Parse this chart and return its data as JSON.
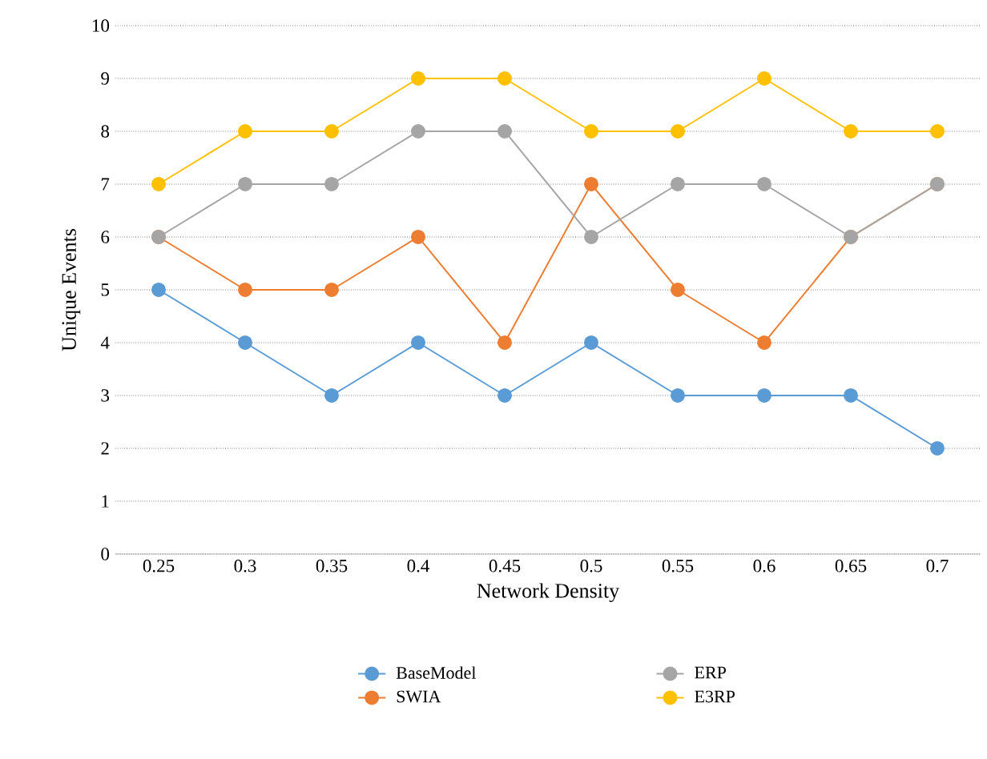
{
  "chart_data": {
    "type": "line",
    "xlabel": "Network Density",
    "ylabel": "Unique Events",
    "categories": [
      "0.25",
      "0.3",
      "0.35",
      "0.4",
      "0.45",
      "0.5",
      "0.55",
      "0.6",
      "0.65",
      "0.7"
    ],
    "series": [
      {
        "name": "BaseModel",
        "color": "#5b9bd5",
        "values": [
          5,
          4,
          3,
          4,
          3,
          4,
          3,
          3,
          3,
          2
        ]
      },
      {
        "name": "SWIA",
        "color": "#ed7d31",
        "values": [
          6,
          5,
          5,
          6,
          4,
          7,
          5,
          4,
          6,
          7
        ]
      },
      {
        "name": "ERP",
        "color": "#a5a5a5",
        "values": [
          6,
          7,
          7,
          8,
          8,
          6,
          7,
          7,
          6,
          7
        ]
      },
      {
        "name": "E3RP",
        "color": "#ffc000",
        "values": [
          7,
          8,
          8,
          9,
          9,
          8,
          8,
          9,
          8,
          8
        ]
      }
    ],
    "ylim": [
      0,
      10
    ],
    "yticks": [
      0,
      1,
      2,
      3,
      4,
      5,
      6,
      7,
      8,
      9,
      10
    ],
    "grid": "y",
    "legend": "bottom",
    "marker": "circle",
    "line_style": "solid"
  }
}
